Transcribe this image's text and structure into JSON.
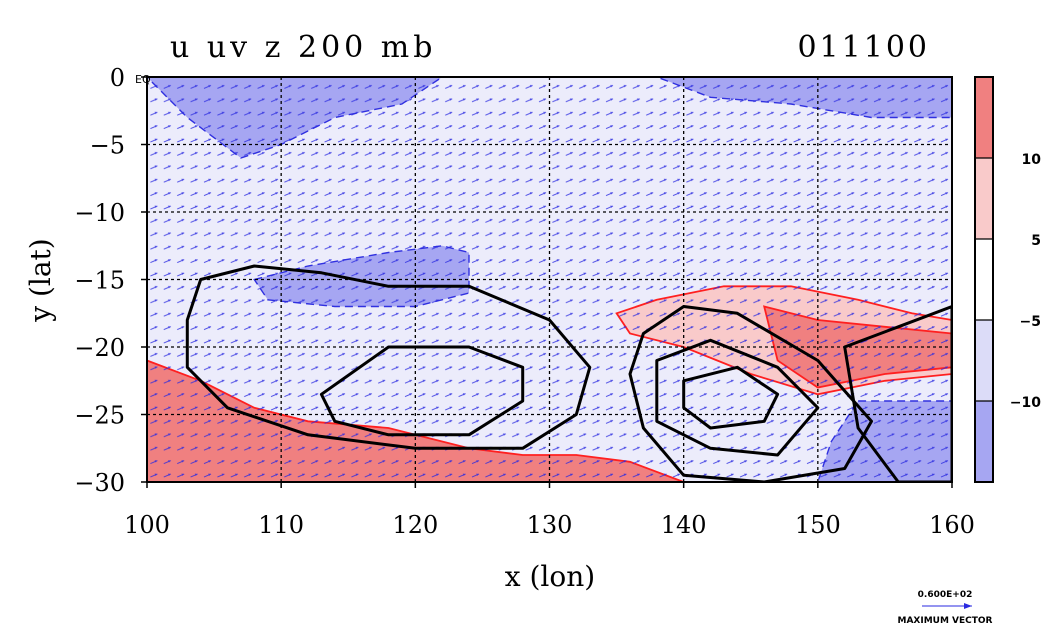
{
  "chart_data": {
    "type": "heatmap",
    "title": "u uv z 200 mb",
    "date_label": "011100",
    "xlabel": "x (lon)",
    "ylabel": "y (lat)",
    "xlim": [
      100,
      160
    ],
    "ylim": [
      -30,
      0
    ],
    "x_ticks": [
      100,
      110,
      120,
      130,
      140,
      150,
      160
    ],
    "x_tick_labels": [
      "100",
      "110",
      "120",
      "130",
      "140",
      "150",
      "160"
    ],
    "y_ticks": [
      0,
      -5,
      -10,
      -15,
      -20,
      -25,
      -30
    ],
    "y_tick_labels": [
      "0",
      "−5",
      "−10",
      "−15",
      "−20",
      "−25",
      "−30"
    ],
    "origin_label": "EQ",
    "grid": true,
    "colorbar": {
      "levels": [
        -10,
        -5,
        5,
        10
      ],
      "tick_labels": [
        "−10",
        "−5",
        "5",
        "10"
      ],
      "colors": [
        "#a6a6f2",
        "#dcdcf8",
        "#ffffff",
        "#f9caca",
        "#f08080"
      ],
      "placement": "right"
    },
    "shaded_regions": [
      {
        "sign": "positive",
        "level": 10,
        "points": [
          [
            100,
            -21
          ],
          [
            104,
            -22.5
          ],
          [
            108,
            -24.5
          ],
          [
            112,
            -25.5
          ],
          [
            118,
            -26
          ],
          [
            124,
            -27.5
          ],
          [
            128,
            -28
          ],
          [
            132,
            -28
          ],
          [
            136,
            -28.5
          ],
          [
            140,
            -30
          ],
          [
            100,
            -30
          ]
        ]
      },
      {
        "sign": "positive",
        "level": 5,
        "points": [
          [
            135,
            -17.5
          ],
          [
            138,
            -16.5
          ],
          [
            143,
            -15.5
          ],
          [
            148,
            -15.5
          ],
          [
            153,
            -16.5
          ],
          [
            157,
            -17.5
          ],
          [
            160,
            -18
          ],
          [
            160,
            -22
          ],
          [
            155,
            -22.5
          ],
          [
            150,
            -23.5
          ],
          [
            145,
            -22
          ],
          [
            140,
            -20
          ],
          [
            136,
            -19
          ]
        ]
      },
      {
        "sign": "positive",
        "level": 10,
        "points": [
          [
            146,
            -17
          ],
          [
            150,
            -18
          ],
          [
            155,
            -18.5
          ],
          [
            160,
            -19
          ],
          [
            160,
            -21.5
          ],
          [
            155,
            -22
          ],
          [
            150,
            -23
          ],
          [
            147,
            -21
          ]
        ]
      },
      {
        "sign": "negative",
        "level": -10,
        "points": [
          [
            108,
            -15
          ],
          [
            112,
            -14
          ],
          [
            118,
            -13
          ],
          [
            122,
            -12.5
          ],
          [
            124,
            -13
          ],
          [
            124,
            -16
          ],
          [
            120,
            -17
          ],
          [
            114,
            -17
          ],
          [
            109,
            -16.5
          ]
        ]
      },
      {
        "sign": "negative",
        "level": -10,
        "points": [
          [
            100,
            0
          ],
          [
            122,
            0
          ],
          [
            119,
            -2
          ],
          [
            114,
            -3
          ],
          [
            110,
            -5
          ],
          [
            107,
            -6
          ],
          [
            103,
            -3
          ]
        ]
      },
      {
        "sign": "negative",
        "level": -10,
        "points": [
          [
            138,
            0
          ],
          [
            160,
            0
          ],
          [
            160,
            -3
          ],
          [
            154,
            -3
          ],
          [
            148,
            -2
          ],
          [
            142,
            -1.5
          ]
        ]
      },
      {
        "sign": "negative",
        "level": -10,
        "points": [
          [
            153,
            -24
          ],
          [
            160,
            -24
          ],
          [
            160,
            -30
          ],
          [
            150,
            -30
          ],
          [
            151,
            -27
          ]
        ]
      }
    ],
    "height_contours": [
      {
        "points": [
          [
            104,
            -15
          ],
          [
            108,
            -14
          ],
          [
            113,
            -14.5
          ],
          [
            118,
            -15.5
          ],
          [
            124,
            -15.5
          ],
          [
            130,
            -18
          ],
          [
            133,
            -21.5
          ],
          [
            132,
            -25
          ],
          [
            128,
            -27.5
          ],
          [
            120,
            -27.5
          ],
          [
            112,
            -26.5
          ],
          [
            106,
            -24.5
          ],
          [
            103,
            -21.5
          ],
          [
            103,
            -18
          ]
        ]
      },
      {
        "points": [
          [
            113,
            -23.5
          ],
          [
            118,
            -20
          ],
          [
            124,
            -20
          ],
          [
            128,
            -21.5
          ],
          [
            128,
            -24
          ],
          [
            124,
            -26.5
          ],
          [
            118,
            -26.5
          ],
          [
            114,
            -25.5
          ]
        ]
      },
      {
        "points": [
          [
            137,
            -19
          ],
          [
            140,
            -17
          ],
          [
            144,
            -17.5
          ],
          [
            150,
            -21
          ],
          [
            154,
            -25.5
          ],
          [
            152,
            -29
          ],
          [
            146,
            -30
          ],
          [
            140,
            -29.5
          ],
          [
            137,
            -26
          ],
          [
            136,
            -22
          ]
        ]
      },
      {
        "points": [
          [
            138,
            -21
          ],
          [
            142,
            -19.5
          ],
          [
            147,
            -21.5
          ],
          [
            150,
            -24.5
          ],
          [
            147,
            -28
          ],
          [
            142,
            -27.5
          ],
          [
            138,
            -25.5
          ]
        ]
      },
      {
        "points": [
          [
            140,
            -22.5
          ],
          [
            144,
            -21.5
          ],
          [
            147,
            -23.5
          ],
          [
            146,
            -25.5
          ],
          [
            142,
            -26
          ],
          [
            140,
            -24.5
          ]
        ]
      },
      {
        "points": [
          [
            152,
            -20
          ],
          [
            156,
            -18.5
          ],
          [
            160,
            -17
          ],
          [
            160,
            -30
          ],
          [
            156,
            -30
          ],
          [
            153,
            -26
          ]
        ]
      }
    ],
    "vector_reference": {
      "value_label": "0.600E+02",
      "caption": "MAXIMUM VECTOR"
    }
  }
}
